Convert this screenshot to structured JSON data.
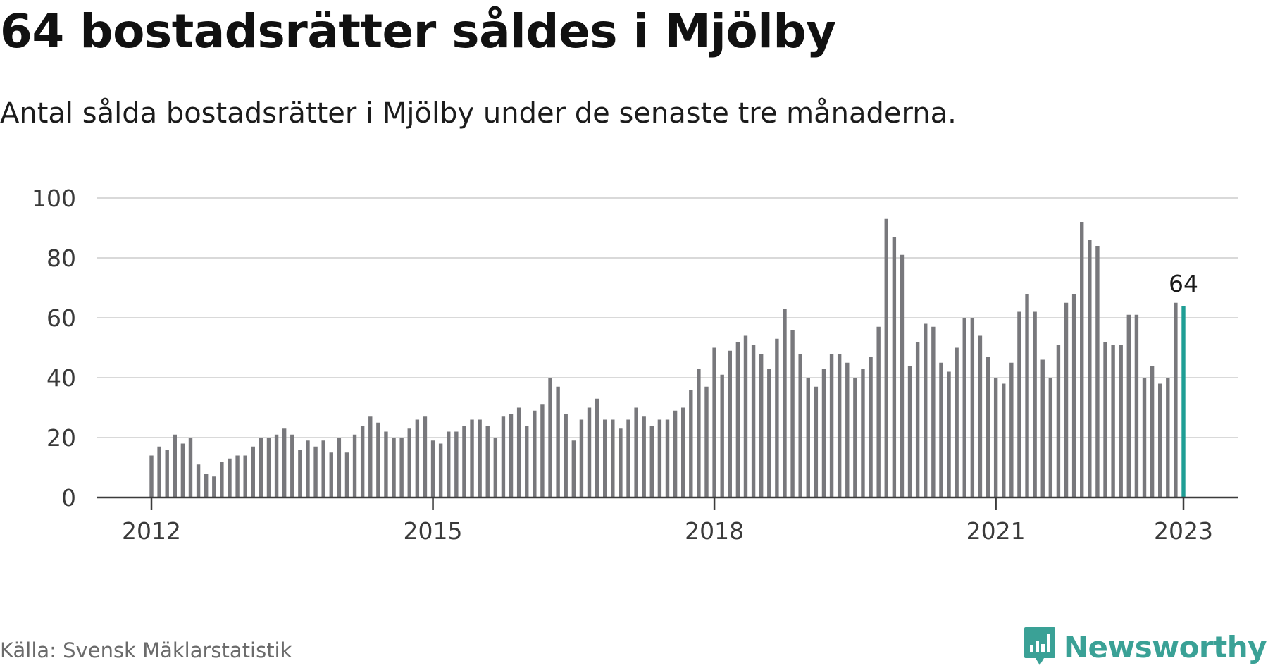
{
  "title": "64 bostadsrätter såldes i Mjölby",
  "subtitle": "Antal sålda bostadsrätter i Mjölby under de senaste tre månaderna.",
  "source": "Källa: Svensk Mäklarstatistik",
  "brand": {
    "name": "Newsworthy",
    "color": "#3aa196",
    "icon": "newsworthy-logo-icon"
  },
  "colors": {
    "bar": "#78787c",
    "highlight": "#1f9e95",
    "grid": "#d9d9d9",
    "axis": "#3b3b3b"
  },
  "chart_data": {
    "type": "bar",
    "title": "64 bostadsrätter såldes i Mjölby",
    "xlabel": "",
    "ylabel": "",
    "ylim": [
      0,
      100
    ],
    "y_ticks": [
      0,
      20,
      40,
      60,
      80,
      100
    ],
    "y_tick_labels": [
      "0",
      "20",
      "40",
      "60",
      "80",
      "100"
    ],
    "x_ticks": [
      "2012-01",
      "2015-01",
      "2018-01",
      "2021-01",
      "2023-01"
    ],
    "x_tick_labels": [
      "2012",
      "2015",
      "2018",
      "2021",
      "2023"
    ],
    "grid": true,
    "legend": "none",
    "start_month": "2012-01",
    "series": [
      {
        "values": [
          14,
          17,
          16,
          21,
          18,
          20,
          11,
          8,
          7,
          12,
          13,
          14,
          14,
          17,
          20,
          20,
          21,
          23,
          21,
          16,
          19,
          17,
          19,
          15,
          20,
          15,
          21,
          24,
          27,
          25,
          22,
          20,
          20,
          23,
          26,
          27,
          19,
          18,
          22,
          22,
          24,
          26,
          26,
          24,
          20,
          27,
          28,
          30,
          24,
          29,
          31,
          40,
          37,
          28,
          19,
          26,
          30,
          33,
          26,
          26,
          23,
          26,
          30,
          27,
          24,
          26,
          26,
          29,
          30,
          36,
          43,
          37,
          50,
          41,
          49,
          52,
          54,
          51,
          48,
          43,
          53,
          63,
          56,
          48,
          40,
          37,
          43,
          48,
          48,
          45,
          40,
          43,
          47,
          57,
          93,
          87,
          81,
          44,
          52,
          58,
          57,
          45,
          42,
          50,
          60,
          60,
          54,
          47,
          40,
          38,
          45,
          62,
          68,
          62,
          46,
          40,
          51,
          65,
          68,
          92,
          86,
          84,
          52,
          51,
          51,
          61,
          61,
          40,
          44,
          38,
          40,
          65,
          64
        ]
      }
    ],
    "highlight": {
      "index": 132,
      "label": "64"
    }
  }
}
